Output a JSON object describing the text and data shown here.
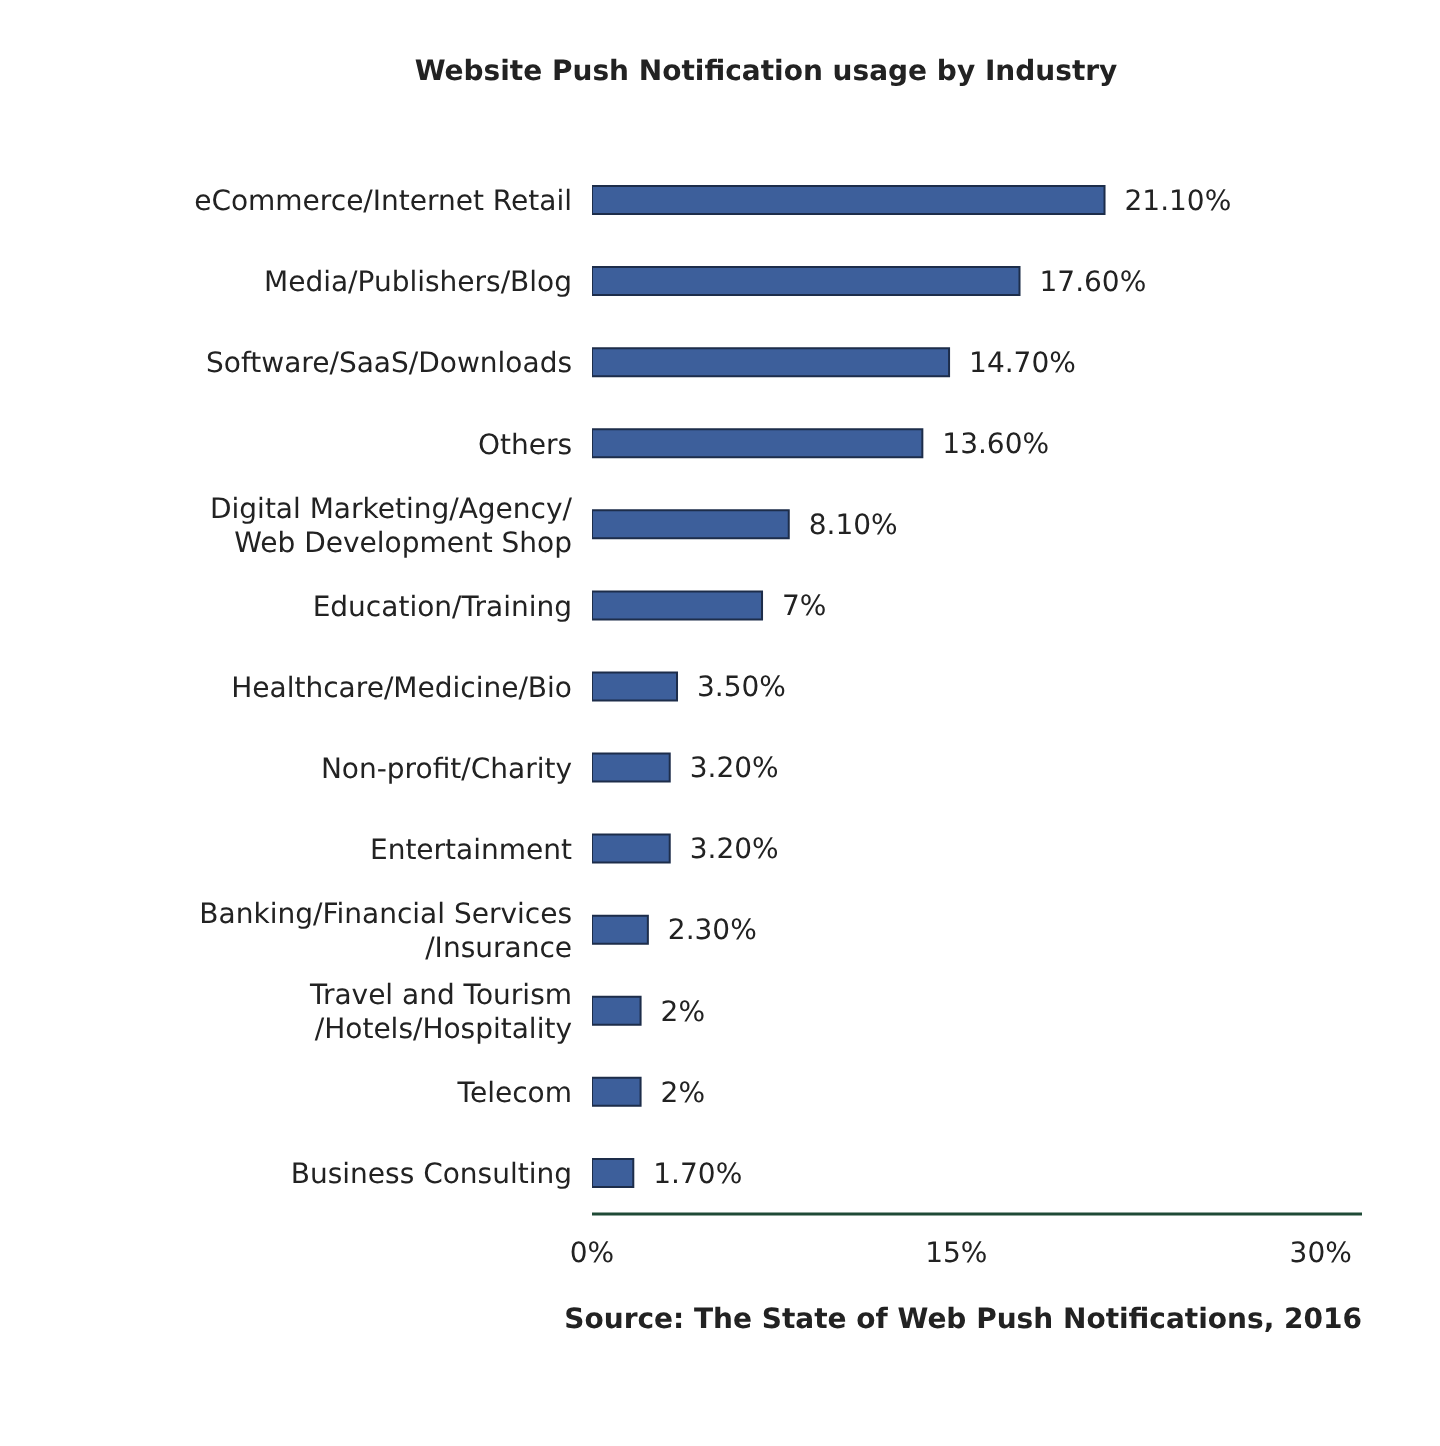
{
  "chart_data": {
    "type": "bar",
    "orientation": "horizontal",
    "title": "Website Push Notification usage by Industry",
    "categories": [
      "eCommerce/Internet Retail",
      "Media/Publishers/Blog",
      "Software/SaaS/Downloads",
      "Others",
      "Digital Marketing/Agency/\nWeb Development Shop",
      "Education/Training",
      "Healthcare/Medicine/Bio",
      "Non-profit/Charity",
      "Entertainment",
      "Banking/Financial Services\n/Insurance",
      "Travel and Tourism\n/Hotels/Hospitality",
      "Telecom",
      "Business Consulting"
    ],
    "values": [
      21.1,
      17.6,
      14.7,
      13.6,
      8.1,
      7,
      3.5,
      3.2,
      3.2,
      2.3,
      2,
      2,
      1.7
    ],
    "value_labels": [
      "21.10%",
      "17.60%",
      "14.70%",
      "13.60%",
      "8.10%",
      "7%",
      "3.50%",
      "3.20%",
      "3.20%",
      "2.30%",
      "2%",
      "2%",
      "1.70%"
    ],
    "color": "#3d5f9b",
    "xlim": [
      0,
      31.7
    ],
    "xticks": [
      {
        "value": 0,
        "label": "0%"
      },
      {
        "value": 15,
        "label": "15%"
      },
      {
        "value": 30,
        "label": "30%"
      }
    ],
    "annotations": [
      "Source: The State of Web Push Notifications, 2016"
    ]
  }
}
